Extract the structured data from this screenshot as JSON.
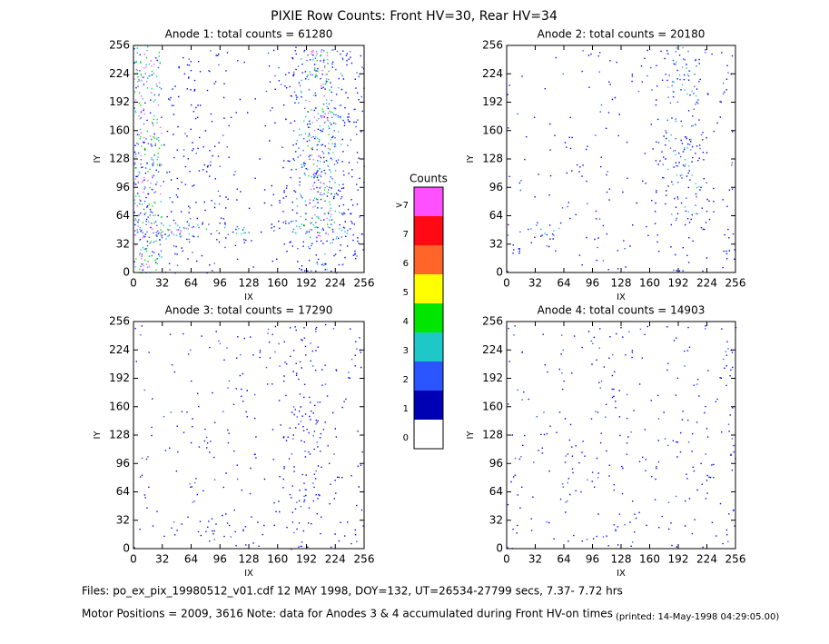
{
  "title": "PIXIE Row Counts:  Front HV=30, Rear HV=34",
  "chart_data": [
    {
      "type": "heatmap",
      "title": "Anode 1: total counts = 61280",
      "xlabel": "IX",
      "ylabel": "IY",
      "xlim": [
        0,
        256
      ],
      "ylim": [
        0,
        256
      ],
      "xticks": [
        0,
        32,
        64,
        96,
        128,
        160,
        192,
        224,
        256
      ],
      "yticks": [
        0,
        32,
        64,
        96,
        128,
        160,
        192,
        224,
        256
      ]
    },
    {
      "type": "heatmap",
      "title": "Anode 2: total counts = 20180",
      "xlabel": "IX",
      "ylabel": "IY",
      "xlim": [
        0,
        256
      ],
      "ylim": [
        0,
        256
      ],
      "xticks": [
        0,
        32,
        64,
        96,
        128,
        160,
        192,
        224,
        256
      ],
      "yticks": [
        0,
        32,
        64,
        96,
        128,
        160,
        192,
        224,
        256
      ]
    },
    {
      "type": "heatmap",
      "title": "Anode 3: total counts = 17290",
      "xlabel": "IX",
      "ylabel": "IY",
      "xlim": [
        0,
        256
      ],
      "ylim": [
        0,
        256
      ],
      "xticks": [
        0,
        32,
        64,
        96,
        128,
        160,
        192,
        224,
        256
      ],
      "yticks": [
        0,
        32,
        64,
        96,
        128,
        160,
        192,
        224,
        256
      ]
    },
    {
      "type": "heatmap",
      "title": "Anode 4: total counts = 14903",
      "xlabel": "IX",
      "ylabel": "IY",
      "xlim": [
        0,
        256
      ],
      "ylim": [
        0,
        256
      ],
      "xticks": [
        0,
        32,
        64,
        96,
        128,
        160,
        192,
        224,
        256
      ],
      "yticks": [
        0,
        32,
        64,
        96,
        128,
        160,
        192,
        224,
        256
      ]
    }
  ],
  "colorbar": {
    "title": "Counts",
    "levels": [
      0,
      1,
      2,
      3,
      4,
      5,
      6,
      7,
      ">7"
    ],
    "colors": [
      "#ffffff",
      "#0000b4",
      "#2a55ff",
      "#1ec8c8",
      "#00e600",
      "#ffff00",
      "#ff6428",
      "#ff0a14",
      "#ff50ff"
    ]
  },
  "footer": {
    "files": "Files: po_ex_pix_19980512_v01.cdf    12 MAY 1998, DOY=132, UT=26534-27799 secs,  7.37- 7.72 hrs",
    "motor": "Motor Positions = 2009, 3616   Note: data for Anodes 3 & 4 accumulated during Front HV-on times",
    "printed": "(printed: 14-May-1998 04:29:05.00)"
  }
}
